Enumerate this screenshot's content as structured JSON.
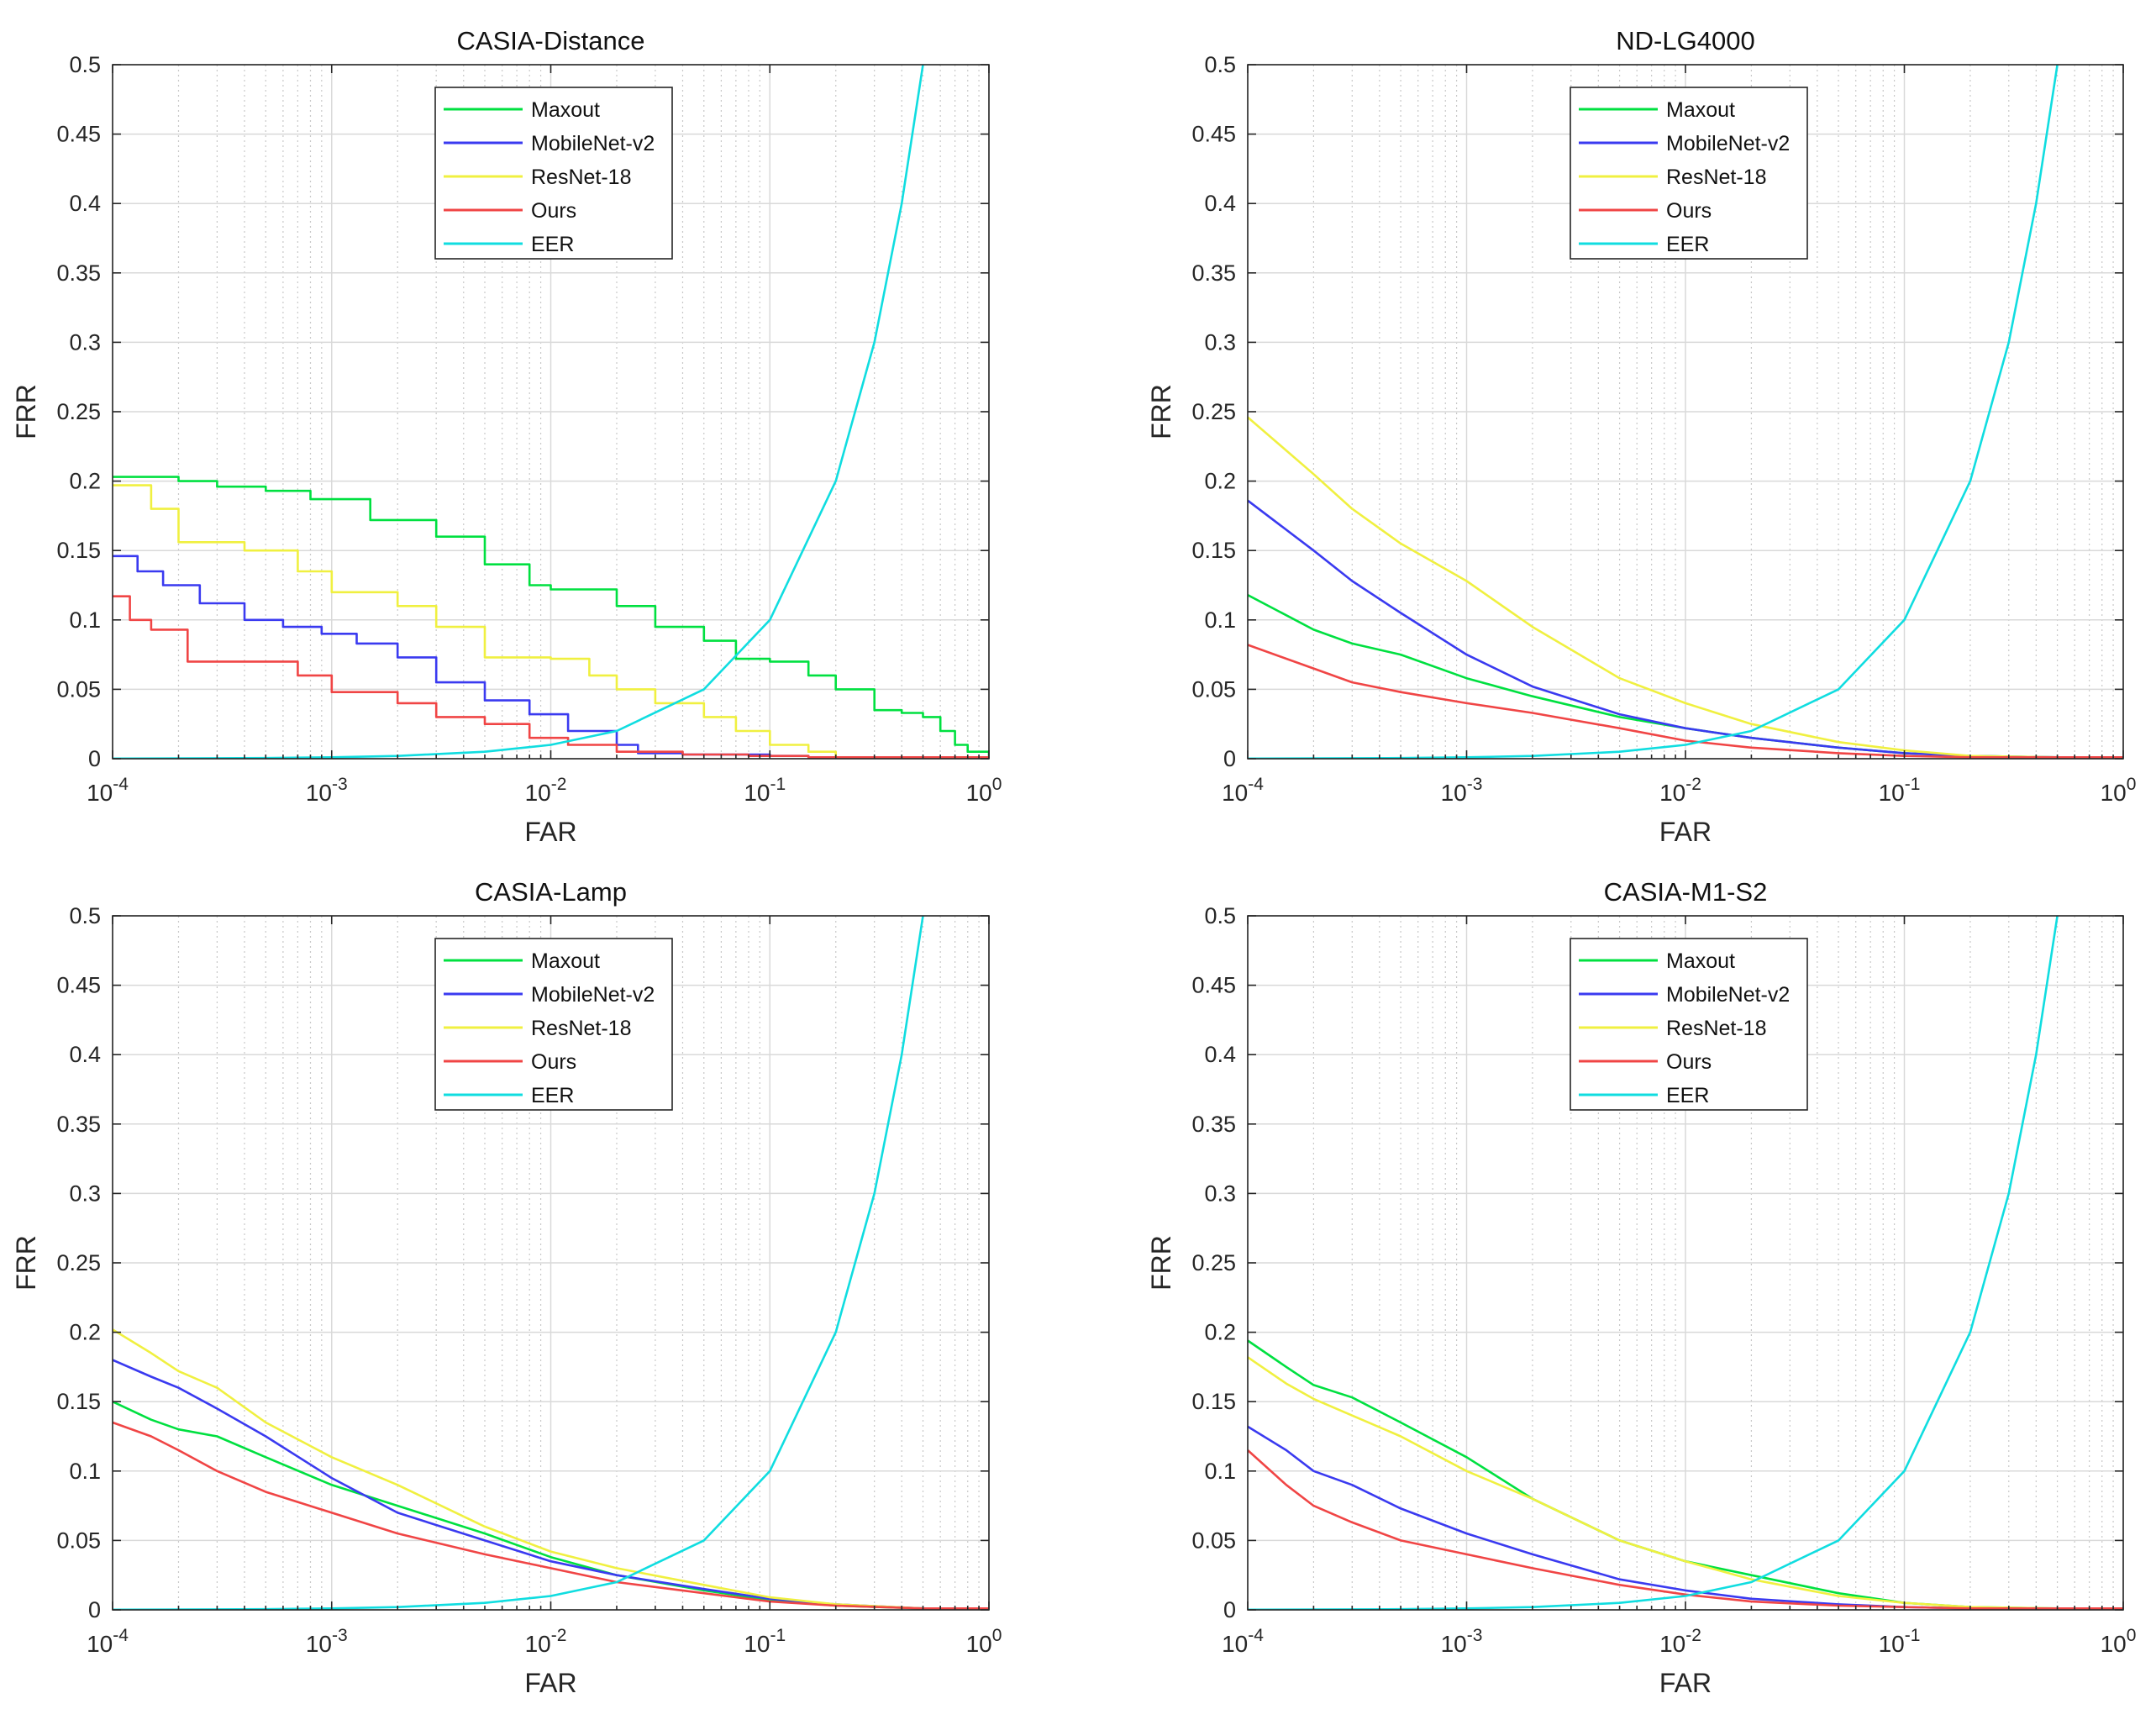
{
  "figure": {
    "background": "#ffffff",
    "series_colors": {
      "Maxout": "#00e040",
      "MobileNet-v2": "#3a3af0",
      "ResNet-18": "#f0f040",
      "Ours": "#f04545",
      "EER": "#10dde0"
    }
  },
  "chart_data": [
    {
      "type": "line",
      "title": "CASIA-Distance",
      "xlabel": "FAR",
      "ylabel": "FRR",
      "xscale": "log",
      "xlim": [
        0.0001,
        1
      ],
      "ylim": [
        0,
        0.5
      ],
      "yticks": [
        "0",
        "0.05",
        "0.1",
        "0.15",
        "0.2",
        "0.25",
        "0.3",
        "0.35",
        "0.4",
        "0.45",
        "0.5"
      ],
      "xticks": [
        {
          "base": "10",
          "exp": "-4"
        },
        {
          "base": "10",
          "exp": "-3"
        },
        {
          "base": "10",
          "exp": "-2"
        },
        {
          "base": "10",
          "exp": "-1"
        },
        {
          "base": "10",
          "exp": "0"
        }
      ],
      "grid": true,
      "legend": "top-center",
      "series": [
        {
          "name": "Maxout",
          "step": true,
          "x": [
            0.0001,
            0.0002,
            0.0003,
            0.0005,
            0.0008,
            0.0015,
            0.003,
            0.005,
            0.008,
            0.01,
            0.02,
            0.03,
            0.05,
            0.07,
            0.1,
            0.15,
            0.2,
            0.3,
            0.4,
            0.5,
            0.6,
            0.7,
            0.8,
            1
          ],
          "y": [
            0.203,
            0.2,
            0.196,
            0.193,
            0.187,
            0.172,
            0.16,
            0.14,
            0.125,
            0.122,
            0.11,
            0.095,
            0.085,
            0.072,
            0.07,
            0.06,
            0.05,
            0.035,
            0.033,
            0.03,
            0.02,
            0.01,
            0.005,
            0.002
          ]
        },
        {
          "name": "MobileNet-v2",
          "step": true,
          "x": [
            0.0001,
            0.00013,
            0.00017,
            0.00025,
            0.0004,
            0.0006,
            0.0009,
            0.0013,
            0.002,
            0.003,
            0.005,
            0.008,
            0.012,
            0.02,
            0.025,
            0.04,
            0.1,
            0.15,
            1
          ],
          "y": [
            0.146,
            0.135,
            0.125,
            0.112,
            0.1,
            0.095,
            0.09,
            0.083,
            0.073,
            0.055,
            0.042,
            0.032,
            0.02,
            0.01,
            0.004,
            0.003,
            0.002,
            0.001,
            0.001
          ]
        },
        {
          "name": "ResNet-18",
          "step": true,
          "x": [
            0.0001,
            0.00015,
            0.0002,
            0.0004,
            0.0007,
            0.001,
            0.002,
            0.003,
            0.005,
            0.01,
            0.015,
            0.02,
            0.03,
            0.05,
            0.07,
            0.1,
            0.15,
            0.2,
            1
          ],
          "y": [
            0.197,
            0.18,
            0.156,
            0.15,
            0.135,
            0.12,
            0.11,
            0.095,
            0.073,
            0.072,
            0.06,
            0.05,
            0.04,
            0.03,
            0.02,
            0.01,
            0.005,
            0.001,
            0.001
          ]
        },
        {
          "name": "Ours",
          "step": true,
          "x": [
            0.0001,
            0.00012,
            0.00015,
            0.00022,
            0.0004,
            0.0007,
            0.001,
            0.002,
            0.003,
            0.005,
            0.008,
            0.012,
            0.02,
            0.04,
            0.08,
            0.15,
            0.3,
            1
          ],
          "y": [
            0.117,
            0.1,
            0.093,
            0.07,
            0.07,
            0.06,
            0.048,
            0.04,
            0.03,
            0.025,
            0.015,
            0.01,
            0.005,
            0.003,
            0.002,
            0.001,
            0.001,
            0.001
          ]
        },
        {
          "name": "EER",
          "x": [
            0.0001,
            0.0005,
            0.001,
            0.002,
            0.005,
            0.01,
            0.02,
            0.05,
            0.1,
            0.2,
            0.3,
            0.4,
            0.5
          ],
          "y": [
            0.0001,
            0.0005,
            0.001,
            0.002,
            0.005,
            0.01,
            0.02,
            0.05,
            0.1,
            0.2,
            0.3,
            0.4,
            0.5
          ]
        }
      ]
    },
    {
      "type": "line",
      "title": "ND-LG4000",
      "xlabel": "FAR",
      "ylabel": "FRR",
      "xscale": "log",
      "xlim": [
        0.0001,
        1
      ],
      "ylim": [
        0,
        0.5
      ],
      "yticks": [
        "0",
        "0.05",
        "0.1",
        "0.15",
        "0.2",
        "0.25",
        "0.3",
        "0.35",
        "0.4",
        "0.45",
        "0.5"
      ],
      "xticks": [
        {
          "base": "10",
          "exp": "-4"
        },
        {
          "base": "10",
          "exp": "-3"
        },
        {
          "base": "10",
          "exp": "-2"
        },
        {
          "base": "10",
          "exp": "-1"
        },
        {
          "base": "10",
          "exp": "0"
        }
      ],
      "grid": true,
      "legend": "top-center",
      "series": [
        {
          "name": "Maxout",
          "x": [
            0.0001,
            0.0002,
            0.0003,
            0.0005,
            0.001,
            0.002,
            0.005,
            0.01,
            0.02,
            0.05,
            0.1,
            0.2,
            0.5,
            1
          ],
          "y": [
            0.118,
            0.093,
            0.083,
            0.075,
            0.058,
            0.045,
            0.03,
            0.022,
            0.015,
            0.008,
            0.004,
            0.002,
            0.001,
            0.001
          ]
        },
        {
          "name": "MobileNet-v2",
          "x": [
            0.0001,
            0.0002,
            0.0003,
            0.0005,
            0.001,
            0.002,
            0.005,
            0.01,
            0.02,
            0.05,
            0.1,
            0.2,
            0.5,
            1
          ],
          "y": [
            0.186,
            0.15,
            0.128,
            0.105,
            0.075,
            0.052,
            0.032,
            0.022,
            0.015,
            0.008,
            0.004,
            0.002,
            0.001,
            0.001
          ]
        },
        {
          "name": "ResNet-18",
          "x": [
            0.0001,
            0.0002,
            0.0003,
            0.0005,
            0.001,
            0.002,
            0.005,
            0.01,
            0.02,
            0.05,
            0.1,
            0.2,
            0.5,
            1
          ],
          "y": [
            0.246,
            0.205,
            0.18,
            0.155,
            0.128,
            0.095,
            0.058,
            0.04,
            0.025,
            0.012,
            0.006,
            0.002,
            0.001,
            0.001
          ]
        },
        {
          "name": "Ours",
          "x": [
            0.0001,
            0.0002,
            0.0003,
            0.0005,
            0.001,
            0.002,
            0.005,
            0.01,
            0.02,
            0.05,
            0.1,
            0.2,
            0.5,
            1
          ],
          "y": [
            0.082,
            0.065,
            0.055,
            0.048,
            0.04,
            0.033,
            0.022,
            0.013,
            0.008,
            0.004,
            0.002,
            0.001,
            0.001,
            0.001
          ]
        },
        {
          "name": "EER",
          "x": [
            0.0001,
            0.0005,
            0.001,
            0.002,
            0.005,
            0.01,
            0.02,
            0.05,
            0.1,
            0.2,
            0.3,
            0.4,
            0.5
          ],
          "y": [
            0.0001,
            0.0005,
            0.001,
            0.002,
            0.005,
            0.01,
            0.02,
            0.05,
            0.1,
            0.2,
            0.3,
            0.4,
            0.5
          ]
        }
      ]
    },
    {
      "type": "line",
      "title": "CASIA-Lamp",
      "xlabel": "FAR",
      "ylabel": "FRR",
      "xscale": "log",
      "xlim": [
        0.0001,
        1
      ],
      "ylim": [
        0,
        0.5
      ],
      "yticks": [
        "0",
        "0.05",
        "0.1",
        "0.15",
        "0.2",
        "0.25",
        "0.3",
        "0.35",
        "0.4",
        "0.45",
        "0.5"
      ],
      "xticks": [
        {
          "base": "10",
          "exp": "-4"
        },
        {
          "base": "10",
          "exp": "-3"
        },
        {
          "base": "10",
          "exp": "-2"
        },
        {
          "base": "10",
          "exp": "-1"
        },
        {
          "base": "10",
          "exp": "0"
        }
      ],
      "grid": true,
      "legend": "top-center",
      "series": [
        {
          "name": "Maxout",
          "x": [
            0.0001,
            0.00015,
            0.0002,
            0.0003,
            0.0005,
            0.001,
            0.002,
            0.005,
            0.01,
            0.02,
            0.05,
            0.1,
            0.2,
            0.5,
            1
          ],
          "y": [
            0.15,
            0.137,
            0.13,
            0.125,
            0.11,
            0.09,
            0.075,
            0.055,
            0.038,
            0.025,
            0.014,
            0.007,
            0.003,
            0.001,
            0.001
          ]
        },
        {
          "name": "MobileNet-v2",
          "x": [
            0.0001,
            0.00015,
            0.0002,
            0.0003,
            0.0005,
            0.001,
            0.002,
            0.005,
            0.01,
            0.02,
            0.05,
            0.1,
            0.2,
            0.5,
            1
          ],
          "y": [
            0.18,
            0.168,
            0.16,
            0.145,
            0.125,
            0.095,
            0.07,
            0.05,
            0.035,
            0.025,
            0.015,
            0.008,
            0.004,
            0.001,
            0.001
          ]
        },
        {
          "name": "ResNet-18",
          "x": [
            0.0001,
            0.00015,
            0.0002,
            0.0003,
            0.0005,
            0.001,
            0.002,
            0.005,
            0.01,
            0.02,
            0.05,
            0.1,
            0.2,
            0.5,
            1
          ],
          "y": [
            0.202,
            0.185,
            0.172,
            0.16,
            0.135,
            0.11,
            0.09,
            0.06,
            0.042,
            0.03,
            0.018,
            0.009,
            0.004,
            0.001,
            0.001
          ]
        },
        {
          "name": "Ours",
          "x": [
            0.0001,
            0.00015,
            0.0002,
            0.0003,
            0.0005,
            0.001,
            0.002,
            0.005,
            0.01,
            0.02,
            0.05,
            0.1,
            0.2,
            0.5,
            1
          ],
          "y": [
            0.135,
            0.125,
            0.115,
            0.1,
            0.085,
            0.07,
            0.055,
            0.04,
            0.03,
            0.02,
            0.012,
            0.006,
            0.003,
            0.001,
            0.001
          ]
        },
        {
          "name": "EER",
          "x": [
            0.0001,
            0.0005,
            0.001,
            0.002,
            0.005,
            0.01,
            0.02,
            0.05,
            0.1,
            0.2,
            0.3,
            0.4,
            0.5
          ],
          "y": [
            0.0001,
            0.0005,
            0.001,
            0.002,
            0.005,
            0.01,
            0.02,
            0.05,
            0.1,
            0.2,
            0.3,
            0.4,
            0.5
          ]
        }
      ]
    },
    {
      "type": "line",
      "title": "CASIA-M1-S2",
      "xlabel": "FAR",
      "ylabel": "FRR",
      "xscale": "log",
      "xlim": [
        0.0001,
        1
      ],
      "ylim": [
        0,
        0.5
      ],
      "yticks": [
        "0",
        "0.05",
        "0.1",
        "0.15",
        "0.2",
        "0.25",
        "0.3",
        "0.35",
        "0.4",
        "0.45",
        "0.5"
      ],
      "xticks": [
        {
          "base": "10",
          "exp": "-4"
        },
        {
          "base": "10",
          "exp": "-3"
        },
        {
          "base": "10",
          "exp": "-2"
        },
        {
          "base": "10",
          "exp": "-1"
        },
        {
          "base": "10",
          "exp": "0"
        }
      ],
      "grid": true,
      "legend": "top-center",
      "series": [
        {
          "name": "Maxout",
          "x": [
            0.0001,
            0.00015,
            0.0002,
            0.0003,
            0.0005,
            0.001,
            0.002,
            0.005,
            0.01,
            0.02,
            0.05,
            0.1,
            0.2,
            0.5,
            1
          ],
          "y": [
            0.194,
            0.175,
            0.162,
            0.153,
            0.135,
            0.11,
            0.08,
            0.05,
            0.035,
            0.025,
            0.012,
            0.005,
            0.002,
            0.001,
            0.001
          ]
        },
        {
          "name": "MobileNet-v2",
          "x": [
            0.0001,
            0.00015,
            0.0002,
            0.0003,
            0.0005,
            0.001,
            0.002,
            0.005,
            0.01,
            0.02,
            0.05,
            0.1,
            0.2,
            0.5,
            1
          ],
          "y": [
            0.132,
            0.115,
            0.1,
            0.09,
            0.073,
            0.055,
            0.04,
            0.022,
            0.014,
            0.008,
            0.004,
            0.002,
            0.001,
            0.001,
            0.001
          ]
        },
        {
          "name": "ResNet-18",
          "x": [
            0.0001,
            0.00015,
            0.0002,
            0.0003,
            0.0005,
            0.001,
            0.002,
            0.005,
            0.01,
            0.02,
            0.05,
            0.1,
            0.2,
            0.5,
            1
          ],
          "y": [
            0.182,
            0.163,
            0.152,
            0.14,
            0.125,
            0.1,
            0.08,
            0.05,
            0.035,
            0.022,
            0.01,
            0.005,
            0.002,
            0.001,
            0.001
          ]
        },
        {
          "name": "Ours",
          "x": [
            0.0001,
            0.00015,
            0.0002,
            0.0003,
            0.0005,
            0.001,
            0.002,
            0.005,
            0.01,
            0.02,
            0.05,
            0.1,
            0.2,
            0.5,
            1
          ],
          "y": [
            0.115,
            0.09,
            0.075,
            0.063,
            0.05,
            0.04,
            0.03,
            0.018,
            0.011,
            0.006,
            0.003,
            0.002,
            0.001,
            0.001,
            0.001
          ]
        },
        {
          "name": "EER",
          "x": [
            0.0001,
            0.0005,
            0.001,
            0.002,
            0.005,
            0.01,
            0.02,
            0.05,
            0.1,
            0.2,
            0.3,
            0.4,
            0.5
          ],
          "y": [
            0.0001,
            0.0005,
            0.001,
            0.002,
            0.005,
            0.01,
            0.02,
            0.05,
            0.1,
            0.2,
            0.3,
            0.4,
            0.5
          ]
        }
      ]
    }
  ]
}
